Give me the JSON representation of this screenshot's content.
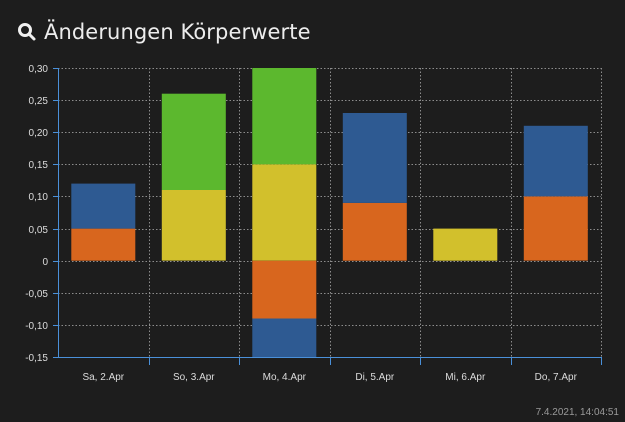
{
  "header": {
    "title": "Änderungen Körperwerte",
    "icon": "search-icon"
  },
  "footer": {
    "timestamp": "7.4.2021, 14:04:51"
  },
  "colors": {
    "background": "#1d1d1d",
    "axis": "#4a90d9",
    "grid": "#9a9a9a",
    "blue": "#2e5a92",
    "orange": "#d8661e",
    "yellow": "#d2c02c",
    "green": "#5cb82e"
  },
  "chart_data": {
    "type": "bar",
    "stacked": true,
    "categories": [
      "Sa, 2.Apr",
      "So, 3.Apr",
      "Mo, 4.Apr",
      "Di, 5.Apr",
      "Mi, 6.Apr",
      "Do, 7.Apr"
    ],
    "series": [
      {
        "color": "#d8661e",
        "values": [
          0.05,
          0,
          -0.09,
          0.09,
          0,
          0.1
        ]
      },
      {
        "color": "#2e5a92",
        "values": [
          0.07,
          0,
          -0.06,
          0.14,
          0,
          0.11
        ]
      },
      {
        "color": "#d2c02c",
        "values": [
          0,
          0.11,
          0.15,
          0,
          0.05,
          0
        ]
      },
      {
        "color": "#5cb82e",
        "values": [
          0,
          0.15,
          0.15,
          0,
          0,
          0
        ]
      }
    ],
    "ylim": [
      -0.15,
      0.3
    ],
    "yticks": [
      "0,30",
      "0,25",
      "0,20",
      "0,15",
      "0,10",
      "0,05",
      "0",
      "-0,05",
      "-0,10",
      "-0,15"
    ],
    "ytick_values": [
      0.3,
      0.25,
      0.2,
      0.15,
      0.1,
      0.05,
      0,
      -0.05,
      -0.1,
      -0.15
    ],
    "grid": true,
    "legend": "none"
  }
}
